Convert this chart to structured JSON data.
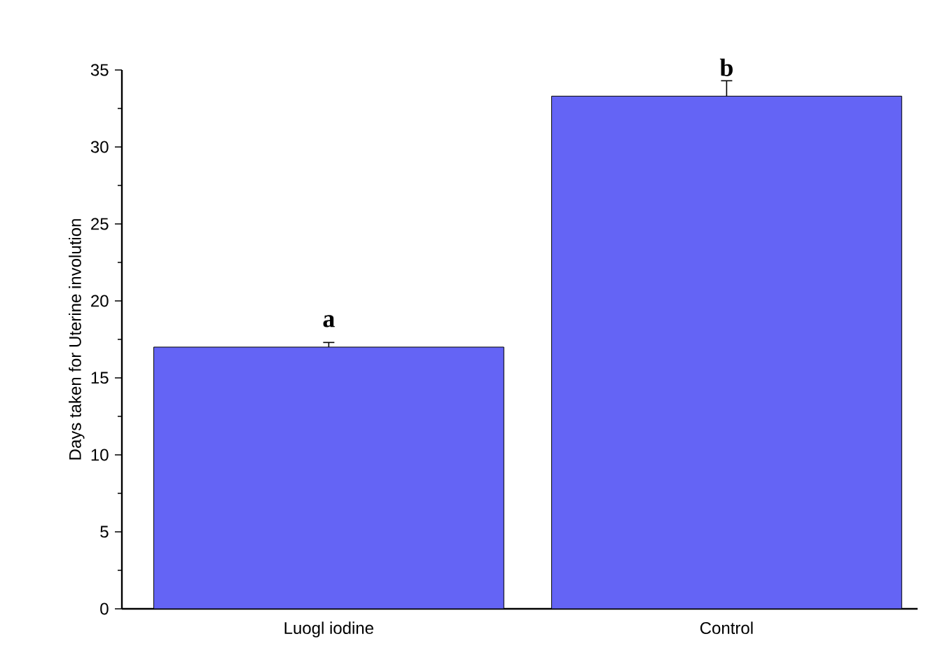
{
  "chart_data": {
    "type": "bar",
    "categories": [
      "Luogl iodine",
      "Control"
    ],
    "values": [
      17.0,
      33.3
    ],
    "errors": [
      0.3,
      1.0
    ],
    "color": "#6464f5",
    "ylabel": "Days taken for Uterine involution",
    "ylim": [
      0,
      35
    ],
    "yticks": [
      0,
      5,
      10,
      15,
      20,
      25,
      30,
      35
    ],
    "annotations": [
      {
        "text": "a",
        "x": "Luogl iodine",
        "y": 17.0
      },
      {
        "text": "b",
        "x": "Control",
        "y": 33.3
      }
    ]
  }
}
